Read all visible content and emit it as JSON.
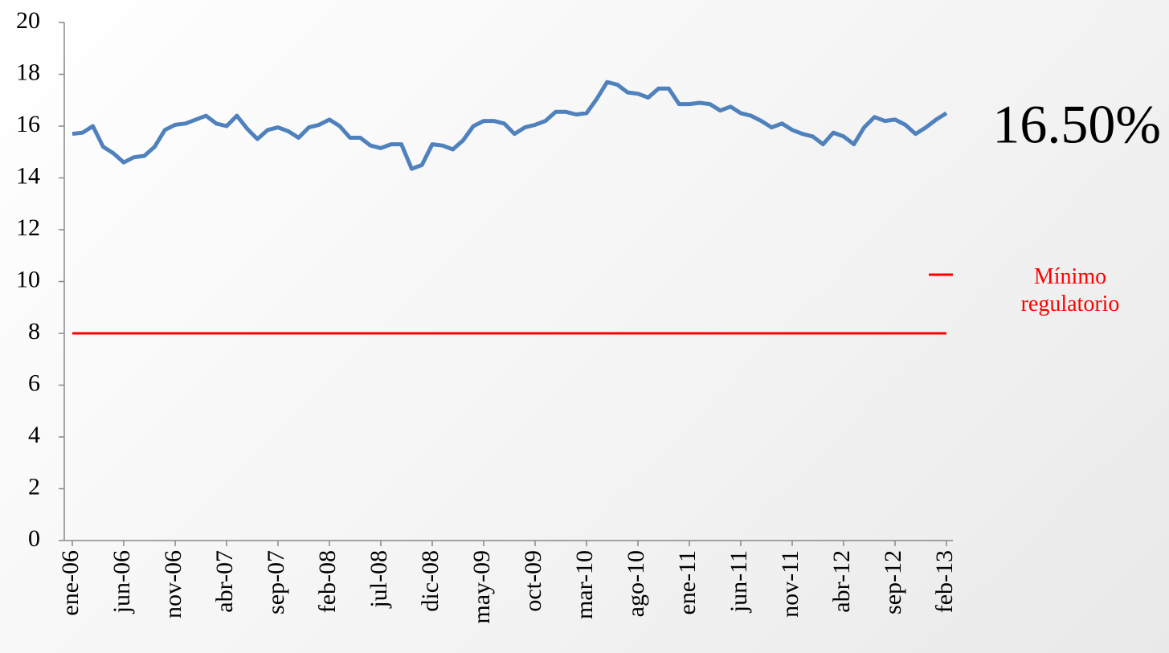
{
  "chart_data": {
    "type": "line",
    "annotation": "16.50%",
    "categories": [
      "ene-06",
      null,
      null,
      null,
      null,
      "jun-06",
      null,
      null,
      null,
      null,
      "nov-06",
      null,
      null,
      null,
      null,
      "abr-07",
      null,
      null,
      null,
      null,
      "sep-07",
      null,
      null,
      null,
      null,
      "feb-08",
      null,
      null,
      null,
      null,
      "jul-08",
      null,
      null,
      null,
      null,
      "dic-08",
      null,
      null,
      null,
      null,
      "may-09",
      null,
      null,
      null,
      null,
      "oct-09",
      null,
      null,
      null,
      null,
      "mar-10",
      null,
      null,
      null,
      null,
      "ago-10",
      null,
      null,
      null,
      null,
      "ene-11",
      null,
      null,
      null,
      null,
      "jun-11",
      null,
      null,
      null,
      null,
      "nov-11",
      null,
      null,
      null,
      null,
      "abr-12",
      null,
      null,
      null,
      null,
      "sep-12",
      null,
      null,
      null,
      null,
      "feb-13"
    ],
    "series": [
      {
        "color": "#4f81bd",
        "values": [
          15.7,
          15.75,
          16.0,
          15.2,
          14.95,
          14.6,
          14.8,
          14.85,
          15.2,
          15.85,
          16.05,
          16.1,
          16.25,
          16.4,
          16.1,
          16.0,
          16.4,
          15.9,
          15.5,
          15.85,
          15.95,
          15.8,
          15.55,
          15.95,
          16.05,
          16.25,
          16.0,
          15.55,
          15.55,
          15.25,
          15.15,
          15.3,
          15.3,
          14.35,
          14.5,
          15.3,
          15.25,
          15.1,
          15.45,
          16.0,
          16.2,
          16.2,
          16.1,
          15.7,
          15.95,
          16.05,
          16.2,
          16.55,
          16.55,
          16.45,
          16.5,
          17.05,
          17.7,
          17.6,
          17.3,
          17.25,
          17.1,
          17.45,
          17.45,
          16.85,
          16.85,
          16.9,
          16.85,
          16.6,
          16.75,
          16.5,
          16.4,
          16.2,
          15.95,
          16.1,
          15.85,
          15.7,
          15.6,
          15.3,
          15.75,
          15.6,
          15.3,
          15.95,
          16.35,
          16.2,
          16.25,
          16.05,
          15.7,
          15.95,
          16.25,
          16.5
        ]
      },
      {
        "name": "Mínimo regulatorio",
        "color": "#ff0000",
        "values": [
          8,
          8,
          8,
          8,
          8,
          8,
          8,
          8,
          8,
          8,
          8,
          8,
          8,
          8,
          8,
          8,
          8,
          8,
          8,
          8,
          8,
          8,
          8,
          8,
          8,
          8,
          8,
          8,
          8,
          8,
          8,
          8,
          8,
          8,
          8,
          8,
          8,
          8,
          8,
          8,
          8,
          8,
          8,
          8,
          8,
          8,
          8,
          8,
          8,
          8,
          8,
          8,
          8,
          8,
          8,
          8,
          8,
          8,
          8,
          8,
          8,
          8,
          8,
          8,
          8,
          8,
          8,
          8,
          8,
          8,
          8,
          8,
          8,
          8,
          8,
          8,
          8,
          8,
          8,
          8,
          8,
          8,
          8,
          8,
          8,
          8
        ]
      }
    ],
    "ylim": [
      0,
      20
    ],
    "yticks": [
      0,
      2,
      4,
      6,
      8,
      10,
      12,
      14,
      16,
      18,
      20
    ],
    "legend": "right"
  }
}
